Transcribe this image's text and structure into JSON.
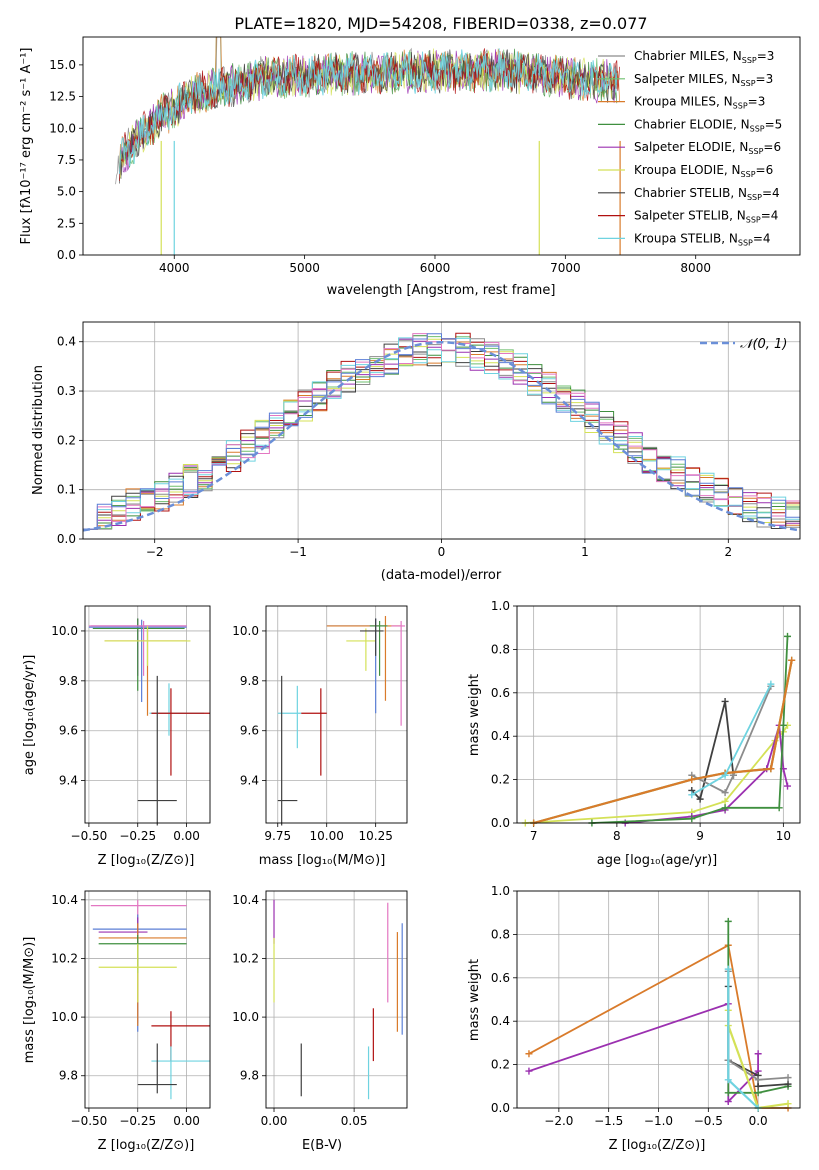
{
  "colors": {
    "chabrier_miles": "#8c8c8c",
    "salpeter_miles": "#6fbf6f",
    "kroupa_miles": "#d97b2b",
    "chabrier_elodie": "#3f8f3f",
    "salpeter_elodie": "#9b30b0",
    "kroupa_elodie": "#d4e157",
    "chabrier_stelib": "#404040",
    "salpeter_stelib": "#b01010",
    "kroupa_stelib": "#6fd3e0",
    "pink": "#e377c2",
    "blue": "#5b7fd6",
    "gaussian": "#6a8fd8"
  },
  "chart_data": [
    {
      "id": "spectrum",
      "type": "line",
      "title": "PLATE=1820, MJD=54208, FIBERID=0338, z=0.077",
      "xlabel": "wavelength [Angstrom, rest frame]",
      "ylabel": "Flux [fλ10⁻¹⁷ erg cm⁻² s⁻¹ A⁻¹]",
      "xlim": [
        3300,
        8800
      ],
      "ylim": [
        0,
        17.2
      ],
      "xticks": [
        "4000",
        "5000",
        "6000",
        "7000",
        "8000"
      ],
      "yticks": [
        "0.0",
        "2.5",
        "5.0",
        "7.5",
        "10.0",
        "12.5",
        "15.0"
      ],
      "grid": false,
      "legend_position": "upper-right",
      "continuum": {
        "x": [
          3550,
          3700,
          3900,
          4000,
          4100,
          4300,
          4500,
          4700,
          5000,
          5300,
          5600,
          5900,
          6200,
          6500,
          6800,
          7100,
          7400
        ],
        "y": [
          7.0,
          9.0,
          11.0,
          11.5,
          12.5,
          13.0,
          13.5,
          14.0,
          14.1,
          14.3,
          14.4,
          14.5,
          14.5,
          14.6,
          14.3,
          13.9,
          13.6
        ]
      },
      "series": [
        {
          "name": "Chabrier MILES, N_SSP=3",
          "legend": "Chabrier MILES, N",
          "n": "=3",
          "color": "#8c8c8c"
        },
        {
          "name": "Salpeter MILES, N_SSP=3",
          "legend": "Salpeter MILES, N",
          "n": "=3",
          "color": "#6fbf6f"
        },
        {
          "name": "Kroupa MILES, N_SSP=3",
          "legend": "Kroupa MILES, N",
          "n": "=3",
          "color": "#d97b2b"
        },
        {
          "name": "Chabrier ELODIE, N_SSP=5",
          "legend": "Chabrier ELODIE, N",
          "n": "=5",
          "color": "#3f8f3f"
        },
        {
          "name": "Salpeter ELODIE, N_SSP=6",
          "legend": "Salpeter ELODIE, N",
          "n": "=6",
          "color": "#9b30b0"
        },
        {
          "name": "Kroupa ELODIE, N_SSP=6",
          "legend": "Kroupa ELODIE, N",
          "n": "=6",
          "color": "#d4e157"
        },
        {
          "name": "Chabrier STELIB, N_SSP=4",
          "legend": "Chabrier STELIB, N",
          "n": "=4",
          "color": "#404040"
        },
        {
          "name": "Salpeter STELIB, N_SSP=4",
          "legend": "Salpeter STELIB, N",
          "n": "=4",
          "color": "#b01010"
        },
        {
          "name": "Kroupa STELIB, N_SSP=4",
          "legend": "Kroupa STELIB, N",
          "n": "=4",
          "color": "#6fd3e0"
        }
      ],
      "ssp_subscript": "SSP"
    },
    {
      "id": "residuals",
      "type": "histogram",
      "xlabel": "(data-model)/error",
      "ylabel": "Normed distribution",
      "xlim": [
        -2.5,
        2.5
      ],
      "ylim": [
        0,
        0.44
      ],
      "xticks": [
        "−2",
        "−1",
        "0",
        "1",
        "2"
      ],
      "yticks": [
        "0.0",
        "0.1",
        "0.2",
        "0.3",
        "0.4"
      ],
      "grid": true,
      "legend_label": "𝒩(0, 1)",
      "legend_position": "upper-right",
      "bin_width": 0.1,
      "reference_curve": "gaussian N(0,1)"
    },
    {
      "id": "age-vs-z",
      "type": "errorbar",
      "xlabel": "Z [log₁₀(Z/Z⊙)]",
      "ylabel": "age  [log₁₀(age/yr)]",
      "xlim": [
        -0.52,
        0.12
      ],
      "ylim": [
        9.23,
        10.1
      ],
      "xticks": [
        -0.5,
        -0.25,
        0.0
      ],
      "xtick_labels": [
        "−0.50",
        "−0.25",
        "0.00"
      ],
      "yticks": [
        9.4,
        9.6,
        9.8,
        10.0
      ],
      "ytick_labels": [
        "9.4",
        "9.6",
        "9.8",
        "10.0"
      ],
      "grid": true,
      "points": [
        {
          "x": -0.25,
          "y": 10.02,
          "xerr": [
            0.24,
            0.25
          ],
          "yerr": [
            0.2,
            0.03
          ],
          "color": "#9b30b0"
        },
        {
          "x": -0.25,
          "y": 10.01,
          "xerr": [
            0.23,
            0.24
          ],
          "yerr": [
            0.25,
            0.04
          ],
          "color": "#3f8f3f"
        },
        {
          "x": -0.23,
          "y": 10.015,
          "xerr": [
            0.27,
            0.23
          ],
          "yerr": [
            0.3,
            0.03
          ],
          "color": "#5b7fd6"
        },
        {
          "x": -0.22,
          "y": 10.02,
          "xerr": [
            0.28,
            0.22
          ],
          "yerr": [
            0.2,
            0.02
          ],
          "color": "#e377c2"
        },
        {
          "x": -0.2,
          "y": 9.96,
          "xerr": [
            0.22,
            0.2
          ],
          "yerr": [
            0.3,
            0.05
          ],
          "color": "#d97b2b"
        },
        {
          "x": -0.2,
          "y": 9.96,
          "xerr": [
            0.22,
            0.22
          ],
          "yerr": [
            0.1,
            0.06
          ],
          "color": "#d4e157"
        },
        {
          "x": -0.09,
          "y": 9.67,
          "xerr": [
            0.1,
            0.18
          ],
          "yerr": [
            0.09,
            0.12
          ],
          "color": "#6fd3e0"
        },
        {
          "x": -0.08,
          "y": 9.67,
          "xerr": [
            0.1,
            0.2
          ],
          "yerr": [
            0.25,
            0.1
          ],
          "color": "#b01010"
        },
        {
          "x": -0.15,
          "y": 9.32,
          "xerr": [
            0.1,
            0.1
          ],
          "yerr": [
            0.1,
            0.5
          ],
          "color": "#404040"
        }
      ]
    },
    {
      "id": "age-vs-mass",
      "type": "errorbar",
      "xlabel": "mass [log₁₀(M/M⊙)]",
      "ylabel": "",
      "xlim": [
        9.69,
        10.41
      ],
      "ylim": [
        9.23,
        10.1
      ],
      "xticks": [
        9.75,
        10.0,
        10.25
      ],
      "xtick_labels": [
        "9.75",
        "10.00",
        "10.25"
      ],
      "yticks": [
        9.4,
        9.6,
        9.8,
        10.0
      ],
      "ytick_labels": [
        "9.4",
        "9.6",
        "9.8",
        "10.0"
      ],
      "grid": true,
      "points": [
        {
          "x": 10.25,
          "y": 10.02,
          "xerr": [
            0.25,
            0.05
          ],
          "yerr": [
            0.35,
            0.03
          ],
          "color": "#5b7fd6"
        },
        {
          "x": 10.3,
          "y": 10.02,
          "xerr": [
            0.3,
            0.08
          ],
          "yerr": [
            0.3,
            0.04
          ],
          "color": "#d97b2b"
        },
        {
          "x": 10.38,
          "y": 10.02,
          "xerr": [
            0.05,
            0.02
          ],
          "yerr": [
            0.4,
            0.02
          ],
          "color": "#e377c2"
        },
        {
          "x": 10.27,
          "y": 10.02,
          "xerr": [
            0.05,
            0.04
          ],
          "yerr": [
            0.2,
            0.02
          ],
          "color": "#3f8f3f"
        },
        {
          "x": 10.2,
          "y": 9.96,
          "xerr": [
            0.1,
            0.05
          ],
          "yerr": [
            0.12,
            0.05
          ],
          "color": "#d4e157"
        },
        {
          "x": 10.25,
          "y": 10.0,
          "xerr": [
            0.08,
            0.04
          ],
          "yerr": [
            0.1,
            0.05
          ],
          "color": "#404040"
        },
        {
          "x": 9.85,
          "y": 9.67,
          "xerr": [
            0.1,
            0.02
          ],
          "yerr": [
            0.14,
            0.11
          ],
          "color": "#6fd3e0"
        },
        {
          "x": 9.97,
          "y": 9.67,
          "xerr": [
            0.1,
            0.03
          ],
          "yerr": [
            0.25,
            0.1
          ],
          "color": "#b01010"
        },
        {
          "x": 9.77,
          "y": 9.32,
          "xerr": [
            0.02,
            0.08
          ],
          "yerr": [
            0.1,
            0.5
          ],
          "color": "#404040"
        }
      ]
    },
    {
      "id": "weight-vs-age",
      "type": "line",
      "xlabel": "age  [log₁₀(age/yr)]",
      "ylabel": "mass weight",
      "xlim": [
        6.8,
        10.2
      ],
      "ylim": [
        0,
        1.0
      ],
      "xticks": [
        7,
        8,
        9,
        10
      ],
      "xtick_labels": [
        "7",
        "8",
        "9",
        "10"
      ],
      "yticks": [
        0,
        0.2,
        0.4,
        0.6,
        0.8,
        1.0
      ],
      "ytick_labels": [
        "0.0",
        "0.2",
        "0.4",
        "0.6",
        "0.8",
        "1.0"
      ],
      "grid": true,
      "series": [
        {
          "color": "#d4e157",
          "x": [
            6.9,
            8.9,
            9.3,
            9.9,
            10.0,
            10.05
          ],
          "y": [
            0.0,
            0.05,
            0.1,
            0.38,
            0.42,
            0.45
          ]
        },
        {
          "color": "#9b30b0",
          "x": [
            8.1,
            8.9,
            9.3,
            9.8,
            9.95,
            10.0,
            10.05
          ],
          "y": [
            0.0,
            0.03,
            0.06,
            0.25,
            0.45,
            0.25,
            0.17
          ]
        },
        {
          "color": "#3f8f3f",
          "x": [
            7.7,
            8.9,
            9.3,
            9.95,
            10.0,
            10.05
          ],
          "y": [
            0.0,
            0.02,
            0.07,
            0.07,
            0.45,
            0.86
          ]
        },
        {
          "color": "#404040",
          "x": [
            8.9,
            9.0,
            9.3,
            9.4
          ],
          "y": [
            0.15,
            0.11,
            0.56,
            0.22
          ]
        },
        {
          "color": "#8c8c8c",
          "x": [
            8.9,
            9.3,
            9.4,
            9.85
          ],
          "y": [
            0.22,
            0.14,
            0.22,
            0.63
          ]
        },
        {
          "color": "#6fbf6f",
          "x": [
            7.0,
            8.9,
            9.3,
            9.85,
            10.1
          ],
          "y": [
            0.0,
            0.2,
            0.23,
            0.25,
            0.75
          ]
        },
        {
          "color": "#d97b2b",
          "x": [
            7.0,
            8.9,
            9.3,
            9.85,
            10.1
          ],
          "y": [
            0.0,
            0.2,
            0.23,
            0.25,
            0.75
          ]
        },
        {
          "color": "#6fd3e0",
          "x": [
            8.9,
            9.3,
            9.85
          ],
          "y": [
            0.13,
            0.22,
            0.64
          ]
        }
      ]
    },
    {
      "id": "mass-vs-z",
      "type": "errorbar",
      "xlabel": "Z [log₁₀(Z/Z⊙)]",
      "ylabel": "mass [log₁₀(M/M⊙)]",
      "xlim": [
        -0.52,
        0.12
      ],
      "ylim": [
        9.69,
        10.43
      ],
      "xticks": [
        -0.5,
        -0.25,
        0.0
      ],
      "xtick_labels": [
        "−0.50",
        "−0.25",
        "0.00"
      ],
      "yticks": [
        9.8,
        10.0,
        10.2,
        10.4
      ],
      "ytick_labels": [
        "9.8",
        "10.0",
        "10.2",
        "10.4"
      ],
      "grid": true,
      "points": [
        {
          "x": -0.25,
          "y": 10.38,
          "xerr": [
            0.24,
            0.25
          ],
          "yerr": [
            0.4,
            0.02
          ],
          "color": "#e377c2"
        },
        {
          "x": -0.25,
          "y": 10.3,
          "xerr": [
            0.23,
            0.25
          ],
          "yerr": [
            0.35,
            0.05
          ],
          "color": "#5b7fd6"
        },
        {
          "x": -0.25,
          "y": 10.29,
          "xerr": [
            0.2,
            0.05
          ],
          "yerr": [
            0.05,
            0.05
          ],
          "color": "#9b30b0"
        },
        {
          "x": -0.25,
          "y": 10.27,
          "xerr": [
            0.2,
            0.25
          ],
          "yerr": [
            0.3,
            0.05
          ],
          "color": "#d97b2b"
        },
        {
          "x": -0.25,
          "y": 10.25,
          "xerr": [
            0.2,
            0.25
          ],
          "yerr": [
            0.1,
            0.03
          ],
          "color": "#3f8f3f"
        },
        {
          "x": -0.25,
          "y": 10.17,
          "xerr": [
            0.2,
            0.2
          ],
          "yerr": [
            0.12,
            0.08
          ],
          "color": "#d4e157"
        },
        {
          "x": -0.08,
          "y": 9.97,
          "xerr": [
            0.1,
            0.2
          ],
          "yerr": [
            0.12,
            0.05
          ],
          "color": "#b01010"
        },
        {
          "x": -0.08,
          "y": 9.85,
          "xerr": [
            0.1,
            0.2
          ],
          "yerr": [
            0.13,
            0.05
          ],
          "color": "#6fd3e0"
        },
        {
          "x": -0.15,
          "y": 9.77,
          "xerr": [
            0.1,
            0.1
          ],
          "yerr": [
            0.03,
            0.14
          ],
          "color": "#404040"
        }
      ]
    },
    {
      "id": "mass-vs-ebv",
      "type": "errorbar",
      "xlabel": "E(B-V)",
      "ylabel": "",
      "xlim": [
        -0.005,
        0.083
      ],
      "ylim": [
        9.69,
        10.43
      ],
      "xticks": [
        0.0,
        0.05
      ],
      "xtick_labels": [
        "0.00",
        "0.05"
      ],
      "yticks": [
        9.8,
        10.0,
        10.2,
        10.4
      ],
      "ytick_labels": [
        "9.8",
        "10.0",
        "10.2",
        "10.4"
      ],
      "grid": true,
      "points": [
        {
          "x": 0.0,
          "y": 10.3,
          "xerr": [
            0,
            0
          ],
          "yerr": [
            0.05,
            0.1
          ],
          "color": "#9b30b0"
        },
        {
          "x": 0.0,
          "y": 10.17,
          "xerr": [
            0,
            0
          ],
          "yerr": [
            0.12,
            0.1
          ],
          "color": "#d4e157"
        },
        {
          "x": 0.017,
          "y": 9.8,
          "xerr": [
            0,
            0
          ],
          "yerr": [
            0.07,
            0.11
          ],
          "color": "#404040"
        },
        {
          "x": 0.059,
          "y": 9.8,
          "xerr": [
            0,
            0
          ],
          "yerr": [
            0.08,
            0.1
          ],
          "color": "#6fd3e0"
        },
        {
          "x": 0.062,
          "y": 9.97,
          "xerr": [
            0,
            0
          ],
          "yerr": [
            0.12,
            0.06
          ],
          "color": "#b01010"
        },
        {
          "x": 0.071,
          "y": 10.22,
          "xerr": [
            0,
            0
          ],
          "yerr": [
            0.17,
            0.17
          ],
          "color": "#e377c2"
        },
        {
          "x": 0.077,
          "y": 10.12,
          "xerr": [
            0,
            0
          ],
          "yerr": [
            0.17,
            0.17
          ],
          "color": "#d97b2b"
        },
        {
          "x": 0.08,
          "y": 10.13,
          "xerr": [
            0,
            0
          ],
          "yerr": [
            0.19,
            0.19
          ],
          "color": "#5b7fd6"
        }
      ]
    },
    {
      "id": "weight-vs-z",
      "type": "line",
      "xlabel": "Z [log₁₀(Z/Z⊙)]",
      "ylabel": "mass weight",
      "xlim": [
        -2.42,
        0.42
      ],
      "ylim": [
        0,
        1.0
      ],
      "xticks": [
        -2.0,
        -1.5,
        -1.0,
        -0.5,
        0.0
      ],
      "xtick_labels": [
        "−2.0",
        "−1.5",
        "−1.0",
        "−0.5",
        "0.0"
      ],
      "yticks": [
        0,
        0.2,
        0.4,
        0.6,
        0.8,
        1.0
      ],
      "ytick_labels": [
        "0.0",
        "0.2",
        "0.4",
        "0.6",
        "0.8",
        "1.0"
      ],
      "grid": true,
      "series": [
        {
          "color": "#d97b2b",
          "x": [
            -2.3,
            -0.3,
            0.0,
            0.3
          ],
          "y": [
            0.25,
            0.75,
            0.0,
            0.0
          ]
        },
        {
          "color": "#9b30b0",
          "x": [
            -2.3,
            -0.3,
            -0.3,
            0.0,
            0.0
          ],
          "y": [
            0.17,
            0.48,
            0.03,
            0.17,
            0.25
          ]
        },
        {
          "color": "#3f8f3f",
          "x": [
            -0.3,
            -0.3,
            0.0,
            0.3
          ],
          "y": [
            0.86,
            0.07,
            0.07,
            0.1
          ]
        },
        {
          "color": "#404040",
          "x": [
            -0.3,
            -0.3,
            0.0,
            0.0,
            0.3
          ],
          "y": [
            0.56,
            0.22,
            0.15,
            0.1,
            0.11
          ]
        },
        {
          "color": "#8c8c8c",
          "x": [
            -0.3,
            -0.3,
            0.0,
            0.3
          ],
          "y": [
            0.63,
            0.22,
            0.13,
            0.14
          ]
        },
        {
          "color": "#d4e157",
          "x": [
            -0.3,
            -0.3,
            0.0,
            0.3
          ],
          "y": [
            0.45,
            0.38,
            0.0,
            0.02
          ]
        },
        {
          "color": "#6fd3e0",
          "x": [
            -0.3,
            -0.3,
            0.0
          ],
          "y": [
            0.64,
            0.13,
            0.0
          ]
        }
      ]
    }
  ]
}
